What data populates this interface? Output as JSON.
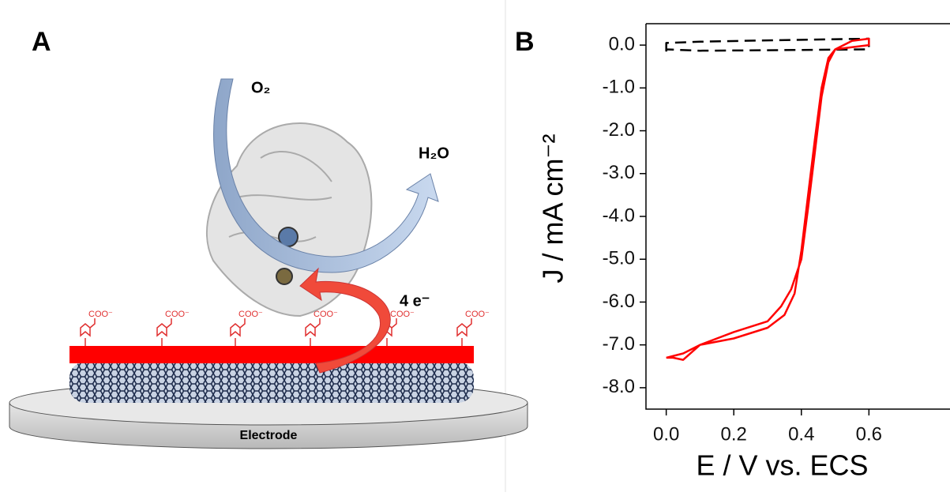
{
  "panel_a": {
    "label": "A",
    "o2": "O₂",
    "h2o": "H₂O",
    "electrons": "4 e⁻",
    "linker_labels": [
      "COO⁻",
      "COO⁻",
      "COO⁻",
      "COO⁻",
      "COO⁻",
      "COO⁻"
    ],
    "electrode": "Electrode"
  },
  "chart_data": {
    "type": "line",
    "panel_label": "B",
    "x_label": "E / V vs. ECS",
    "y_label": "J / mA cm⁻²",
    "xlim": [
      -0.06,
      0.84
    ],
    "ylim": [
      -8.5,
      0.5
    ],
    "xticks": [
      {
        "value": 0,
        "label": "0.0"
      },
      {
        "value": 0.2,
        "label": "0.2"
      },
      {
        "value": 0.4,
        "label": "0.4"
      },
      {
        "value": 0.6,
        "label": "0.6"
      }
    ],
    "yticks": [
      {
        "value": 0,
        "label": "0.0"
      },
      {
        "value": -1,
        "label": "-1.0"
      },
      {
        "value": -2,
        "label": "-2.0"
      },
      {
        "value": -3,
        "label": "-3.0"
      },
      {
        "value": -4,
        "label": "-4.0"
      },
      {
        "value": -5,
        "label": "-5.0"
      },
      {
        "value": -6,
        "label": "-6.0"
      },
      {
        "value": -7,
        "label": "-7.0"
      },
      {
        "value": -8,
        "label": "-8.0"
      }
    ],
    "series": [
      {
        "color": "#000000",
        "dashed": true,
        "x": [
          0.0,
          0.0,
          0.1,
          0.3,
          0.6,
          0.6,
          0.3,
          0.1,
          0.0
        ],
        "values": [
          -0.15,
          0.05,
          0.08,
          0.11,
          0.15,
          -0.1,
          -0.12,
          -0.13,
          -0.1
        ]
      },
      {
        "color": "#ff0000",
        "dashed": false,
        "x": [
          0.0,
          0.05,
          0.1,
          0.2,
          0.3,
          0.35,
          0.38,
          0.4,
          0.42,
          0.44,
          0.46,
          0.48,
          0.5,
          0.55,
          0.6,
          0.6,
          0.55,
          0.5,
          0.48,
          0.46,
          0.44,
          0.42,
          0.4,
          0.37,
          0.34,
          0.3,
          0.2,
          0.1,
          0.05,
          0.02,
          0.0
        ],
        "values": [
          -7.3,
          -7.2,
          -7.0,
          -6.85,
          -6.6,
          -6.3,
          -5.8,
          -4.8,
          -3.5,
          -2.2,
          -1.0,
          -0.3,
          -0.1,
          0.1,
          0.15,
          0.0,
          -0.05,
          -0.1,
          -0.4,
          -1.2,
          -2.5,
          -3.8,
          -5.0,
          -5.7,
          -6.1,
          -6.45,
          -6.7,
          -7.0,
          -7.35,
          -7.3,
          -7.3
        ]
      }
    ]
  }
}
